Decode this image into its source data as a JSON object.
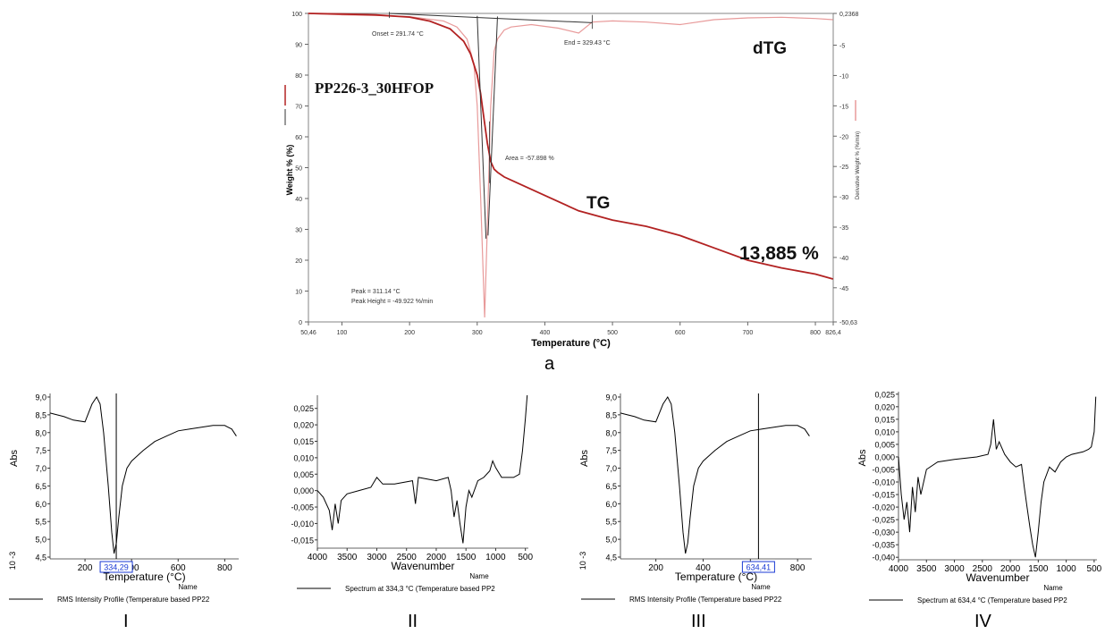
{
  "chart_data": [
    {
      "id": "a",
      "type": "line",
      "panel_label": "a",
      "xlabel": "Temperature (°C)",
      "ylabel": "Weight % (%)",
      "y2label": "Derivative Weight % (%/min)",
      "x_ticks": [
        "50,46",
        "100",
        "200",
        "300",
        "400",
        "500",
        "600",
        "700",
        "800",
        "826,4"
      ],
      "y_ticks": [
        "0",
        "10",
        "20",
        "30",
        "40",
        "50",
        "60",
        "70",
        "80",
        "90",
        "100"
      ],
      "y2_ticks": [
        "0,2368",
        "-5",
        "-10",
        "-15",
        "-20",
        "-25",
        "-30",
        "-35",
        "-40",
        "-45",
        "-50,63"
      ],
      "xlim": [
        50.46,
        826.4
      ],
      "ylim": [
        0,
        100
      ],
      "y2lim": [
        -50.63,
        0.2368
      ],
      "sample_label": "PP226-3_30HFOP",
      "tg_label": "TG",
      "dtg_label": "dTG",
      "residue_label": "13,885 %",
      "annotations": {
        "onset": "Onset = 291.74 °C",
        "end": "End = 329.43 °C",
        "area": "Area = -57.898 %",
        "peak": "Peak = 311.14 °C",
        "peak_height": "Peak Height = -49.922 %/min"
      },
      "series": [
        {
          "name": "TG",
          "axis": "left",
          "color": "#b22222",
          "x": [
            50,
            100,
            150,
            200,
            230,
            260,
            280,
            290,
            300,
            305,
            310,
            315,
            320,
            325,
            330,
            340,
            360,
            400,
            450,
            500,
            550,
            600,
            650,
            700,
            750,
            800,
            826
          ],
          "y": [
            100,
            99.8,
            99.5,
            98.8,
            97.5,
            95,
            91,
            87,
            80,
            74,
            66,
            58,
            52,
            49.5,
            48.5,
            47,
            45,
            41,
            36,
            33,
            31,
            28,
            24,
            20,
            17.5,
            15.5,
            13.9
          ]
        },
        {
          "name": "dTG",
          "axis": "right",
          "color": "#e89a9a",
          "x": [
            50,
            100,
            150,
            200,
            250,
            270,
            285,
            295,
            300,
            305,
            311,
            315,
            320,
            325,
            330,
            340,
            350,
            380,
            420,
            450,
            470,
            500,
            550,
            600,
            650,
            700,
            750,
            800,
            826
          ],
          "y": [
            0.2,
            0,
            -0.1,
            -0.3,
            -1,
            -2,
            -4,
            -8,
            -15,
            -30,
            -49.9,
            -35,
            -15,
            -6,
            -4,
            -2.5,
            -2,
            -1.6,
            -2.2,
            -3,
            -1.2,
            -1,
            -1.2,
            -1.6,
            -0.8,
            -0.5,
            -0.4,
            -0.6,
            -0.8
          ]
        },
        {
          "name": "Tangent",
          "axis": "left",
          "color": "#333333",
          "x": [
            170,
            470
          ],
          "y": [
            100,
            97
          ]
        }
      ]
    },
    {
      "id": "I",
      "type": "line",
      "panel_label": "I",
      "xlabel": "Temperature (°C)",
      "ylabel": "Abs",
      "exponent": "10 -3",
      "x_ticks": [
        "200",
        "400",
        "600",
        "800"
      ],
      "y_ticks": [
        "4,5",
        "5,0",
        "5,5",
        "6,0",
        "6,5",
        "7,0",
        "7,5",
        "8,0",
        "8,5",
        "9,0"
      ],
      "xlim": [
        50,
        860
      ],
      "ylim": [
        4.45,
        9.1
      ],
      "cursor": 334.29,
      "cursor_label": "334,29",
      "legend_header": "Name",
      "legend_entry": "RMS Intensity Profile (Temperature based PP22",
      "series": [
        {
          "name": "RMS Intensity Profile (Temperature based PP22",
          "x": [
            50,
            80,
            110,
            150,
            200,
            230,
            250,
            265,
            280,
            300,
            315,
            325,
            335,
            345,
            360,
            380,
            400,
            450,
            500,
            550,
            600,
            650,
            700,
            750,
            800,
            830,
            850
          ],
          "y": [
            8.55,
            8.5,
            8.45,
            8.35,
            8.3,
            8.8,
            9.0,
            8.8,
            8.0,
            6.5,
            5.2,
            4.6,
            4.9,
            5.6,
            6.5,
            7.0,
            7.2,
            7.5,
            7.75,
            7.9,
            8.05,
            8.1,
            8.15,
            8.2,
            8.2,
            8.1,
            7.9
          ]
        }
      ]
    },
    {
      "id": "II",
      "type": "line",
      "panel_label": "II",
      "xlabel": "Wavenumber",
      "ylabel": "Abs",
      "x_ticks": [
        "4000",
        "3500",
        "3000",
        "2500",
        "2000",
        "1500",
        "1000",
        "500"
      ],
      "y_ticks": [
        "-0,015",
        "-0,010",
        "-0,005",
        "0,000",
        "0,005",
        "0,010",
        "0,015",
        "0,020",
        "0,025"
      ],
      "xlim": [
        4000,
        450
      ],
      "ylim": [
        -0.0175,
        0.029
      ],
      "legend_header": "Name",
      "legend_entry": "Spectrum at 334,3 °C (Temperature based PP2",
      "series": [
        {
          "name": "Spectrum at 334,3 °C (Temperature based PP2",
          "x": [
            4000,
            3900,
            3800,
            3750,
            3700,
            3650,
            3600,
            3500,
            3300,
            3100,
            3000,
            2950,
            2900,
            2700,
            2400,
            2350,
            2300,
            2000,
            1800,
            1750,
            1700,
            1650,
            1600,
            1550,
            1500,
            1450,
            1400,
            1300,
            1200,
            1100,
            1050,
            1000,
            900,
            700,
            600,
            550,
            500,
            470
          ],
          "y": [
            0,
            -0.002,
            -0.006,
            -0.012,
            -0.004,
            -0.01,
            -0.003,
            -0.001,
            0.0,
            0.001,
            0.004,
            0.003,
            0.002,
            0.002,
            0.003,
            -0.004,
            0.004,
            0.003,
            0.004,
            0.0,
            -0.008,
            -0.003,
            -0.01,
            -0.016,
            -0.005,
            0.0,
            -0.002,
            0.003,
            0.004,
            0.006,
            0.009,
            0.007,
            0.004,
            0.004,
            0.005,
            0.012,
            0.022,
            0.029
          ]
        }
      ]
    },
    {
      "id": "III",
      "type": "line",
      "panel_label": "III",
      "xlabel": "Temperature (°C)",
      "ylabel": "Abs",
      "exponent": "10 -3",
      "x_ticks": [
        "200",
        "400",
        "600",
        "800"
      ],
      "y_ticks": [
        "4,5",
        "5,0",
        "5,5",
        "6,0",
        "6,5",
        "7,0",
        "7,5",
        "8,0",
        "8,5",
        "9,0"
      ],
      "xlim": [
        50,
        860
      ],
      "ylim": [
        4.45,
        9.1
      ],
      "cursor": 634.41,
      "cursor_label": "634,41",
      "legend_header": "Name",
      "legend_entry": "RMS Intensity Profile (Temperature based PP22",
      "series": [
        {
          "name": "RMS Intensity Profile (Temperature based PP22",
          "x": [
            50,
            80,
            110,
            150,
            200,
            230,
            250,
            265,
            280,
            300,
            315,
            325,
            335,
            345,
            360,
            380,
            400,
            450,
            500,
            550,
            600,
            650,
            700,
            750,
            800,
            830,
            850
          ],
          "y": [
            8.55,
            8.5,
            8.45,
            8.35,
            8.3,
            8.8,
            9.0,
            8.8,
            8.0,
            6.5,
            5.2,
            4.6,
            4.9,
            5.6,
            6.5,
            7.0,
            7.2,
            7.5,
            7.75,
            7.9,
            8.05,
            8.1,
            8.15,
            8.2,
            8.2,
            8.1,
            7.9
          ]
        }
      ]
    },
    {
      "id": "IV",
      "type": "line",
      "panel_label": "IV",
      "xlabel": "Wavenumber",
      "ylabel": "Abs",
      "x_ticks": [
        "4000",
        "3500",
        "3000",
        "2500",
        "2000",
        "1500",
        "1000",
        "500"
      ],
      "y_ticks": [
        "-0,040",
        "-0,035",
        "-0,030",
        "-0,025",
        "-0,020",
        "-0,015",
        "-0,010",
        "-0,005",
        "0,000",
        "0,005",
        "0,010",
        "0,015",
        "0,020",
        "0,025"
      ],
      "xlim": [
        4000,
        450
      ],
      "ylim": [
        -0.041,
        0.026
      ],
      "legend_header": "Name",
      "legend_entry": "Spectrum at 634,4 °C (Temperature based PP2",
      "series": [
        {
          "name": "Spectrum at 634,4 °C (Temperature based PP2",
          "x": [
            4000,
            3950,
            3900,
            3850,
            3800,
            3750,
            3700,
            3650,
            3600,
            3500,
            3300,
            3000,
            2600,
            2400,
            2350,
            2300,
            2250,
            2200,
            2100,
            2000,
            1900,
            1800,
            1750,
            1700,
            1650,
            1600,
            1550,
            1500,
            1450,
            1400,
            1300,
            1200,
            1100,
            1000,
            900,
            700,
            600,
            550,
            500,
            470
          ],
          "y": [
            0,
            -0.015,
            -0.025,
            -0.018,
            -0.03,
            -0.012,
            -0.022,
            -0.008,
            -0.015,
            -0.005,
            -0.002,
            -0.001,
            0.0,
            0.001,
            0.005,
            0.015,
            0.003,
            0.006,
            0.001,
            -0.002,
            -0.004,
            -0.003,
            -0.012,
            -0.02,
            -0.028,
            -0.035,
            -0.04,
            -0.03,
            -0.018,
            -0.01,
            -0.004,
            -0.006,
            -0.002,
            0.0,
            0.001,
            0.002,
            0.003,
            0.004,
            0.01,
            0.024
          ]
        }
      ]
    }
  ]
}
